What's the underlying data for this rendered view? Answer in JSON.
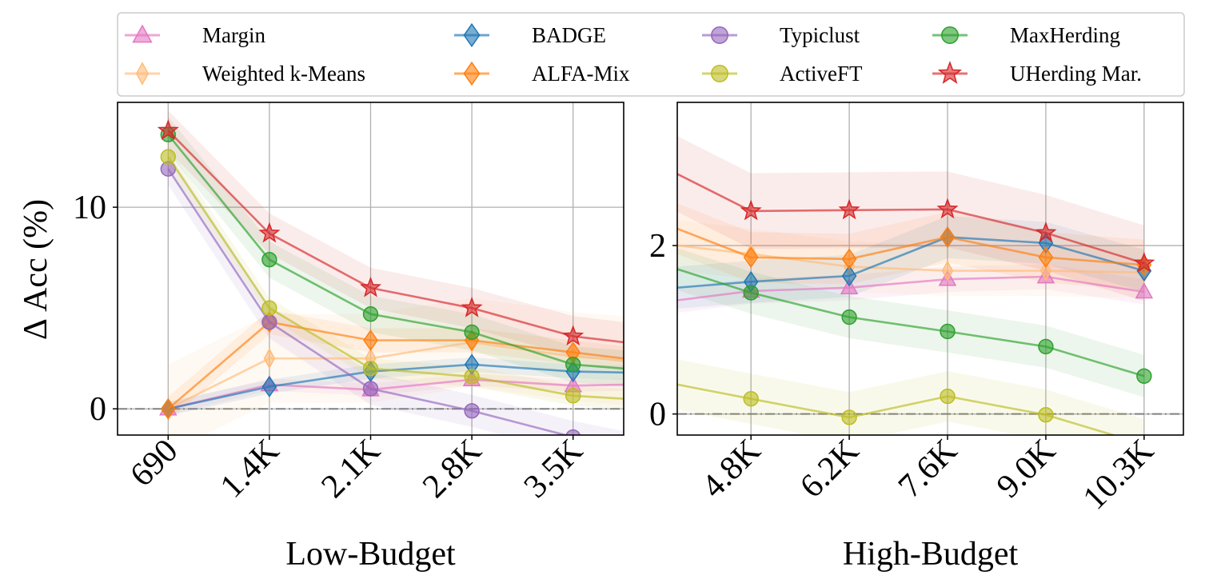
{
  "colors": {
    "Margin": "#e377c2",
    "Weighted k-Means": "#ffbb78",
    "BADGE": "#1f77b4",
    "ALFA-Mix": "#ff7f0e",
    "Typiclust": "#9467bd",
    "ActiveFT": "#bcbd22",
    "MaxHerding": "#2ca02c",
    "UHerding Mar.": "#d62728"
  },
  "legend": {
    "items": [
      {
        "name": "Margin",
        "marker": "triangle"
      },
      {
        "name": "Weighted k-Means",
        "marker": "thin_diamond"
      },
      {
        "name": "BADGE",
        "marker": "diamond"
      },
      {
        "name": "ALFA-Mix",
        "marker": "diamond"
      },
      {
        "name": "Typiclust",
        "marker": "circle"
      },
      {
        "name": "ActiveFT",
        "marker": "circle"
      },
      {
        "name": "MaxHerding",
        "marker": "circle"
      },
      {
        "name": "UHerding Mar.",
        "marker": "star"
      }
    ]
  },
  "chart_data": [
    {
      "type": "line",
      "id": "low-budget",
      "xlabel": "Low-Budget",
      "ylabel": "Δ Acc (%)",
      "categories": [
        "690",
        "1.4K",
        "2.1K",
        "2.8K",
        "3.5K"
      ],
      "xlim": [
        -0.5,
        4.5
      ],
      "ylim": [
        -1.3,
        15.2
      ],
      "yticks": [
        0,
        10
      ],
      "ytick_labels": [
        "0",
        "10"
      ],
      "baseline": 0,
      "series": [
        {
          "name": "Margin",
          "values": [
            0,
            1.2,
            0.95,
            1.45,
            1.15
          ],
          "tail": 1.2,
          "band": 0.3
        },
        {
          "name": "Weighted k-Means",
          "values": [
            0,
            2.5,
            2.5,
            3.3,
            2.6
          ],
          "tail": 2.4,
          "band": 2.2
        },
        {
          "name": "BADGE",
          "values": [
            0,
            1.1,
            1.85,
            2.2,
            1.85
          ],
          "tail": 1.8,
          "band": 0.35
        },
        {
          "name": "ALFA-Mix",
          "values": [
            0,
            4.3,
            3.4,
            3.4,
            2.8
          ],
          "tail": 2.5,
          "band": 0.6
        },
        {
          "name": "Typiclust",
          "values": [
            11.9,
            4.3,
            1.0,
            -0.1,
            -1.4
          ],
          "tail": -1.9,
          "band": 0.8
        },
        {
          "name": "ActiveFT",
          "values": [
            12.5,
            5.0,
            2.0,
            1.6,
            0.65
          ],
          "tail": 0.5,
          "band": 0.5
        },
        {
          "name": "MaxHerding",
          "values": [
            13.6,
            7.4,
            4.7,
            3.8,
            2.2
          ],
          "tail": 2.0,
          "band": 0.9
        },
        {
          "name": "UHerding Mar.",
          "values": [
            13.8,
            8.7,
            6.0,
            5.0,
            3.6
          ],
          "tail": 3.3,
          "band": 1.0
        }
      ]
    },
    {
      "type": "line",
      "id": "high-budget",
      "xlabel": "High-Budget",
      "ylabel": "",
      "categories": [
        "4.8K",
        "6.2K",
        "7.6K",
        "9.0K",
        "10.3K"
      ],
      "xlim": [
        -0.75,
        4.4
      ],
      "ylim": [
        -0.25,
        3.7
      ],
      "yticks": [
        0,
        2
      ],
      "ytick_labels": [
        "0",
        "2"
      ],
      "baseline": 0,
      "series": [
        {
          "name": "Margin",
          "values": [
            1.46,
            1.5,
            1.6,
            1.63,
            1.45
          ],
          "head": 1.35,
          "band": 0.15
        },
        {
          "name": "Weighted k-Means",
          "values": [
            1.9,
            1.75,
            1.7,
            1.7,
            1.68
          ],
          "head": 2.0,
          "band": 0.3
        },
        {
          "name": "BADGE",
          "values": [
            1.57,
            1.64,
            2.1,
            2.03,
            1.7
          ],
          "head": 1.5,
          "band": 0.25
        },
        {
          "name": "ALFA-Mix",
          "values": [
            1.86,
            1.84,
            2.1,
            1.86,
            1.77
          ],
          "head": 2.2,
          "band": 0.3
        },
        {
          "name": "ActiveFT",
          "values": [
            0.18,
            -0.04,
            0.21,
            -0.01,
            -0.36
          ],
          "head": 0.35,
          "band": 0.3
        },
        {
          "name": "MaxHerding",
          "values": [
            1.44,
            1.15,
            0.98,
            0.8,
            0.45
          ],
          "head": 1.72,
          "band": 0.25
        },
        {
          "name": "UHerding Mar.",
          "values": [
            2.41,
            2.42,
            2.43,
            2.15,
            1.79
          ],
          "head": 2.85,
          "band": 0.45
        }
      ]
    }
  ]
}
